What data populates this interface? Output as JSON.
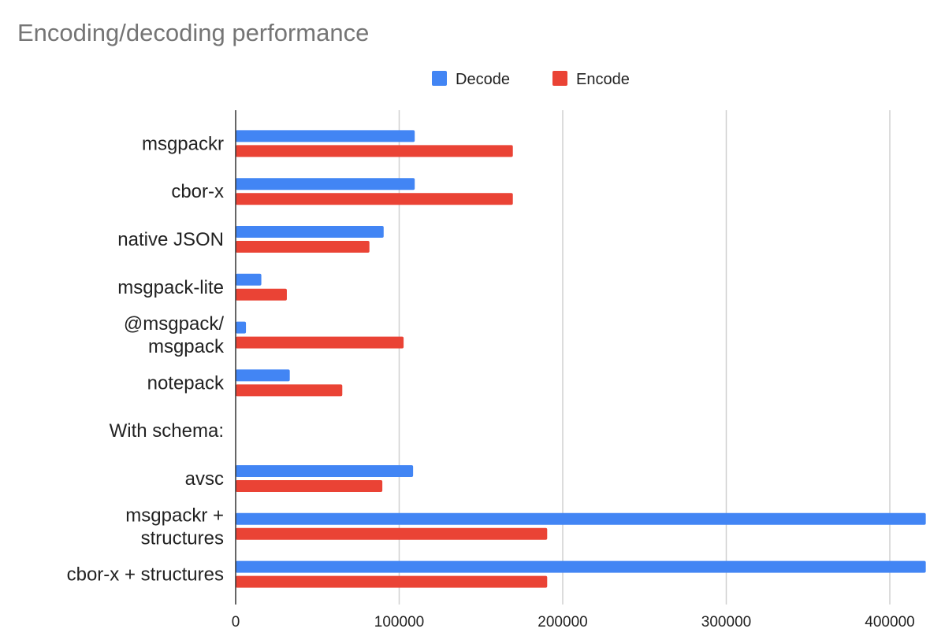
{
  "chart_data": {
    "type": "bar",
    "orientation": "horizontal",
    "title": "Encoding/decoding performance",
    "categories": [
      "msgpackr",
      "cbor-x",
      "native JSON",
      "msgpack-lite",
      "@msgpack/\nmsgpack",
      "notepack",
      "With schema:",
      "avsc",
      "msgpackr +\nstructures",
      "cbor-x + structures"
    ],
    "series": [
      {
        "name": "Decode",
        "color": "#4285f4",
        "values": [
          109500,
          109500,
          90500,
          15700,
          6300,
          33100,
          null,
          108500,
          422000,
          422000
        ]
      },
      {
        "name": "Encode",
        "color": "#ea4335",
        "values": [
          169500,
          169500,
          81800,
          31300,
          102700,
          65200,
          null,
          89700,
          190500,
          190500
        ]
      }
    ],
    "xlabel": "",
    "ylabel": "",
    "xlim": [
      0,
      425000
    ],
    "xticks": [
      "0",
      "100000",
      "200000",
      "300000",
      "400000"
    ],
    "xtick_values": [
      0,
      100000,
      200000,
      300000,
      400000
    ],
    "grid": "vertical",
    "legend_position": "top"
  }
}
